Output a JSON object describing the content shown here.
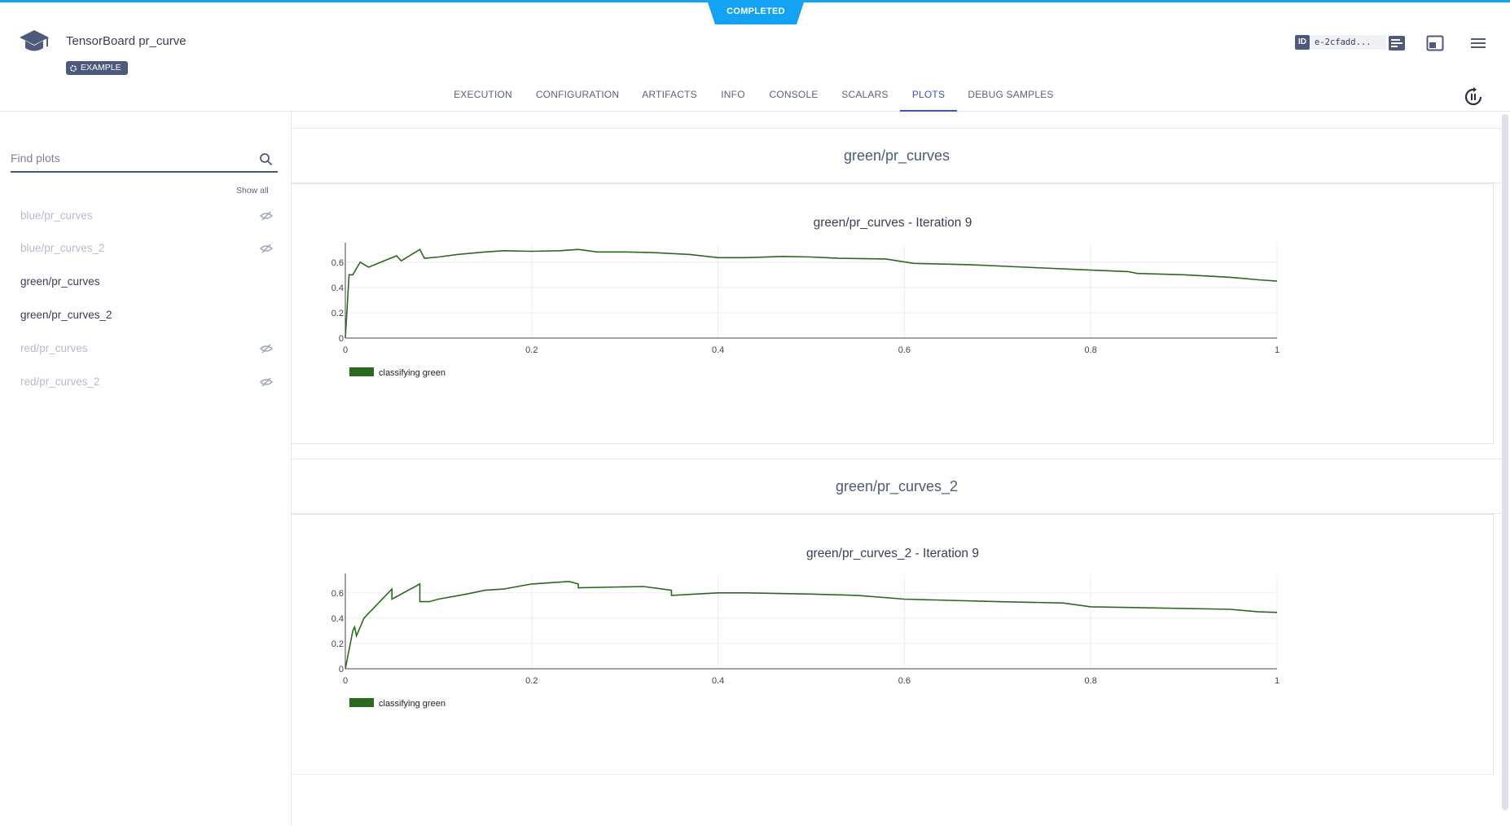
{
  "status": {
    "label": "COMPLETED",
    "color": "#14a2f5"
  },
  "header": {
    "title": "TensorBoard pr_curve",
    "badge": "EXAMPLE",
    "id_label": "ID",
    "id_value": "e-2cfadd..."
  },
  "tabs": [
    {
      "label": "EXECUTION"
    },
    {
      "label": "CONFIGURATION"
    },
    {
      "label": "ARTIFACTS"
    },
    {
      "label": "INFO"
    },
    {
      "label": "CONSOLE"
    },
    {
      "label": "SCALARS"
    },
    {
      "label": "PLOTS",
      "active": true
    },
    {
      "label": "DEBUG SAMPLES"
    }
  ],
  "sidebar": {
    "search_placeholder": "Find plots",
    "show_all": "Show all",
    "items": [
      {
        "label": "blue/pr_curves",
        "visible": false
      },
      {
        "label": "blue/pr_curves_2",
        "visible": false
      },
      {
        "label": "green/pr_curves",
        "visible": true
      },
      {
        "label": "green/pr_curves_2",
        "visible": true
      },
      {
        "label": "red/pr_curves",
        "visible": false
      },
      {
        "label": "red/pr_curves_2",
        "visible": false
      }
    ]
  },
  "sections": [
    {
      "title": "green/pr_curves"
    },
    {
      "title": "green/pr_curves_2"
    }
  ],
  "chart_data": [
    {
      "type": "line",
      "title": "green/pr_curves - Iteration 9",
      "xlabel": "",
      "ylabel": "",
      "xlim": [
        0,
        1
      ],
      "ylim": [
        0,
        0.74
      ],
      "x_ticks": [
        "0",
        "0.2",
        "0.4",
        "0.6",
        "0.8",
        "1"
      ],
      "y_ticks": [
        "0",
        "0.2",
        "0.4",
        "0.6"
      ],
      "grid": true,
      "legend": "bottom-left",
      "color": "#2b6a1e",
      "series": [
        {
          "name": "classifying green",
          "x": [
            0,
            0.004,
            0.008,
            0.012,
            0.016,
            0.025,
            0.045,
            0.055,
            0.06,
            0.08,
            0.085,
            0.1,
            0.12,
            0.15,
            0.17,
            0.2,
            0.23,
            0.25,
            0.27,
            0.3,
            0.33,
            0.37,
            0.4,
            0.43,
            0.47,
            0.5,
            0.53,
            0.58,
            0.61,
            0.67,
            0.73,
            0.79,
            0.84,
            0.85,
            0.9,
            0.95,
            0.98,
            1.0
          ],
          "y": [
            0,
            0.5,
            0.5,
            0.55,
            0.6,
            0.56,
            0.62,
            0.65,
            0.61,
            0.7,
            0.63,
            0.64,
            0.66,
            0.68,
            0.69,
            0.685,
            0.69,
            0.7,
            0.68,
            0.68,
            0.675,
            0.66,
            0.635,
            0.635,
            0.645,
            0.64,
            0.63,
            0.625,
            0.59,
            0.58,
            0.56,
            0.54,
            0.525,
            0.51,
            0.5,
            0.48,
            0.46,
            0.45
          ]
        }
      ]
    },
    {
      "type": "line",
      "title": "green/pr_curves_2 - Iteration 9",
      "xlabel": "",
      "ylabel": "",
      "xlim": [
        0,
        1
      ],
      "ylim": [
        0,
        0.74
      ],
      "x_ticks": [
        "0",
        "0.2",
        "0.4",
        "0.6",
        "0.8",
        "1"
      ],
      "y_ticks": [
        "0",
        "0.2",
        "0.4",
        "0.6"
      ],
      "grid": true,
      "legend": "bottom-left",
      "color": "#2b6a1e",
      "series": [
        {
          "name": "classifying green",
          "x": [
            0,
            0.008,
            0.01,
            0.012,
            0.02,
            0.05,
            0.05,
            0.08,
            0.08,
            0.09,
            0.1,
            0.13,
            0.15,
            0.17,
            0.2,
            0.24,
            0.25,
            0.25,
            0.32,
            0.35,
            0.35,
            0.4,
            0.43,
            0.5,
            0.55,
            0.6,
            0.7,
            0.77,
            0.8,
            0.95,
            0.98,
            1.0
          ],
          "y": [
            0,
            0.3,
            0.33,
            0.26,
            0.4,
            0.63,
            0.55,
            0.67,
            0.53,
            0.53,
            0.55,
            0.59,
            0.62,
            0.63,
            0.67,
            0.69,
            0.67,
            0.64,
            0.65,
            0.62,
            0.58,
            0.6,
            0.6,
            0.59,
            0.58,
            0.55,
            0.53,
            0.52,
            0.49,
            0.47,
            0.45,
            0.445
          ]
        }
      ]
    }
  ]
}
